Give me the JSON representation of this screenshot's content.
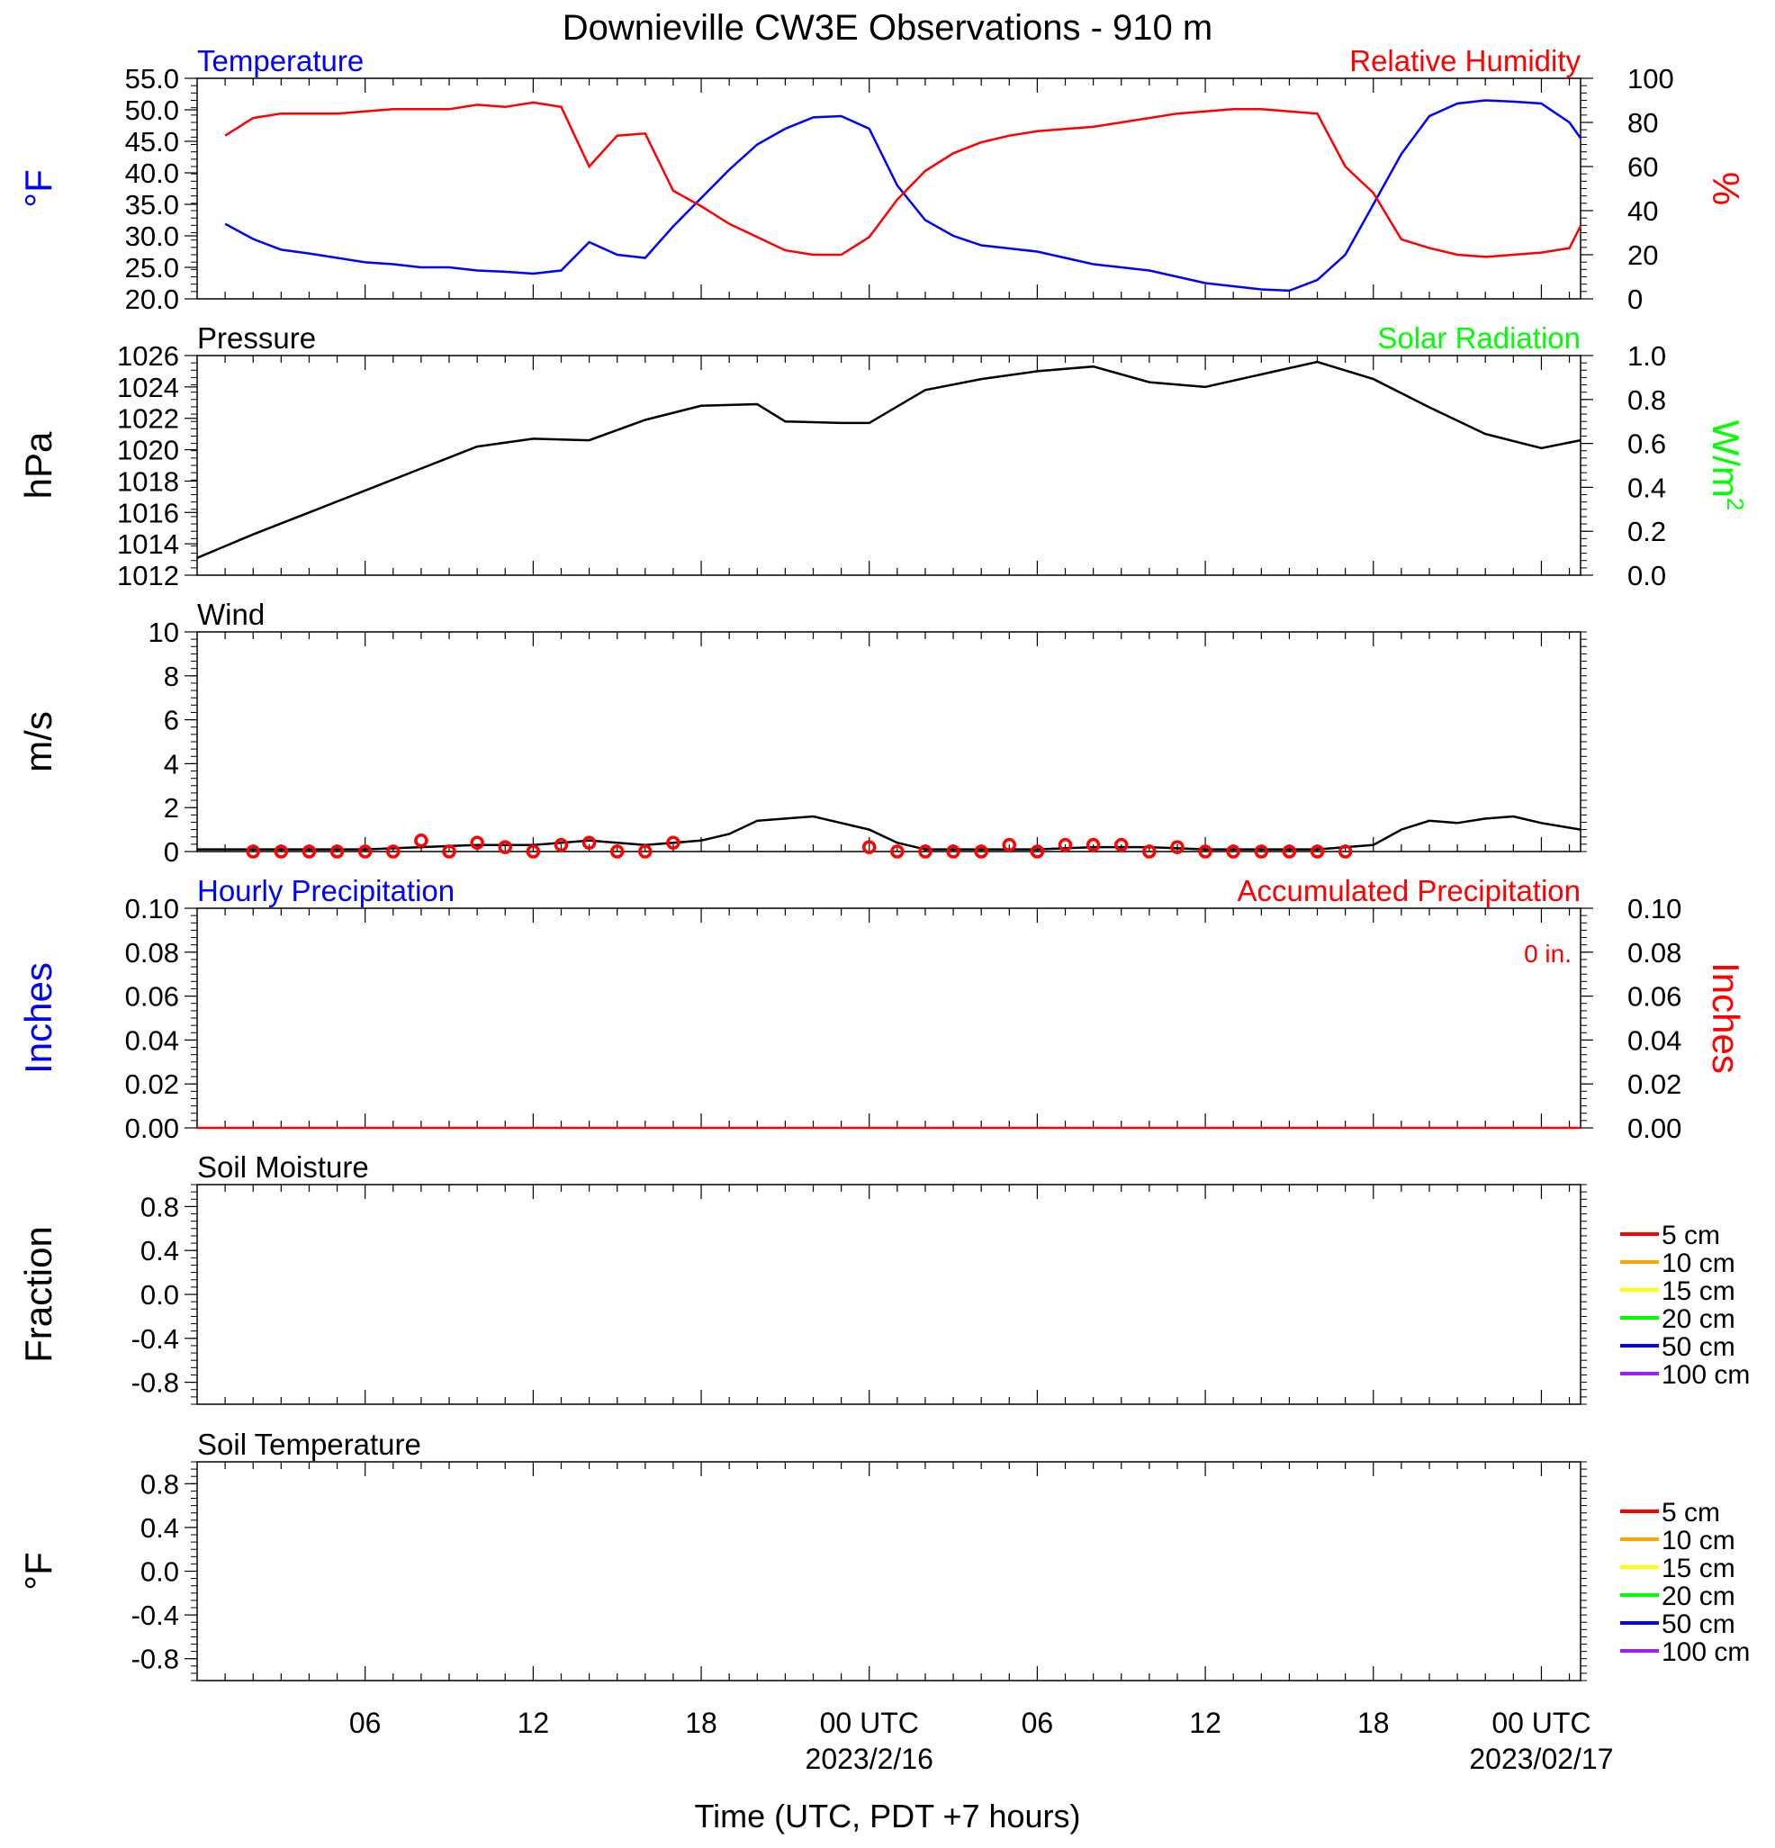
{
  "title": "Downieville CW3E Observations - 910 m",
  "xlabel": "Time (UTC, PDT +7 hours)",
  "x_ticks": [
    "06",
    "12",
    "18",
    "00 UTC",
    "06",
    "12",
    "18",
    "00 UTC"
  ],
  "x_dates": [
    "2023/2/16",
    "2023/02/17"
  ],
  "colors": {
    "red": "#ff0000",
    "blue": "#0000ff",
    "green": "#00ff00",
    "black": "#000000"
  },
  "chart_data": [
    {
      "type": "line",
      "panel": "temperature",
      "title_left": "Temperature",
      "title_right": "Relative Humidity",
      "ylabel_left": "°F",
      "ylabel_right": "%",
      "ylim_left": [
        20,
        55
      ],
      "ylim_right": [
        0,
        100
      ],
      "yticks_left": [
        "55.0",
        "50.0",
        "45.0",
        "40.0",
        "35.0",
        "30.0",
        "25.0",
        "20.0"
      ],
      "yticks_right": [
        "100",
        "80",
        "60",
        "40",
        "20",
        "0"
      ],
      "x_hours": [
        1,
        2,
        3,
        4,
        5,
        6,
        7,
        8,
        9,
        10,
        11,
        12,
        13,
        14,
        15,
        16,
        17,
        18,
        19,
        20,
        21,
        22,
        23,
        24,
        25,
        26,
        27,
        28,
        29,
        30,
        31,
        32,
        33,
        34,
        35,
        36,
        37,
        38,
        39,
        40,
        41,
        42,
        43,
        44,
        45,
        46,
        47,
        48,
        49,
        49.4
      ],
      "series": [
        {
          "name": "Temperature",
          "color": "#0000ff",
          "axis": "left",
          "values": [
            31.9,
            29.5,
            27.8,
            27.2,
            26.5,
            25.8,
            25.5,
            25.0,
            25.0,
            24.5,
            24.3,
            24.0,
            24.5,
            29.0,
            27.0,
            26.5,
            31.5,
            36.0,
            40.5,
            44.5,
            47.0,
            48.8,
            49.0,
            47.0,
            38.0,
            32.5,
            30.0,
            28.5,
            28.0,
            27.5,
            26.5,
            25.5,
            25.0,
            24.5,
            23.5,
            22.5,
            22.0,
            21.5,
            21.3,
            23.0,
            27.0,
            35.0,
            43.0,
            49.0,
            51.0,
            51.5,
            51.3,
            51.0,
            48.0,
            45.5
          ]
        },
        {
          "name": "Relative Humidity",
          "color": "#ff0000",
          "axis": "right",
          "values": [
            74,
            82,
            84,
            84,
            84,
            85,
            86,
            86,
            86,
            88,
            87,
            89,
            87,
            60,
            74,
            75,
            49,
            42,
            34,
            28,
            22,
            20,
            20,
            28,
            45,
            58,
            66,
            71,
            74,
            76,
            77,
            78,
            80,
            82,
            84,
            85,
            86,
            86,
            85,
            84,
            60,
            48,
            27,
            23,
            20,
            19,
            20,
            21,
            23,
            33
          ]
        }
      ]
    },
    {
      "type": "line",
      "panel": "pressure",
      "title_left": "Pressure",
      "title_right": "Solar Radiation",
      "ylabel_left": "hPa",
      "ylabel_right": "W/m",
      "ylabel_right_sup": "2",
      "ylim_left": [
        1012,
        1026
      ],
      "ylim_right": [
        0,
        1
      ],
      "yticks_left": [
        "1026",
        "1024",
        "1022",
        "1020",
        "1018",
        "1016",
        "1014",
        "1012"
      ],
      "yticks_right": [
        "1.0",
        "0.8",
        "0.6",
        "0.4",
        "0.2",
        "0.0"
      ],
      "x_hours": [
        0,
        2,
        4,
        6,
        8,
        10,
        12,
        14,
        16,
        18,
        20,
        21,
        23,
        24,
        26,
        28,
        30,
        32,
        34,
        36,
        38,
        40,
        42,
        44,
        46,
        48,
        49.4
      ],
      "series": [
        {
          "name": "Pressure",
          "color": "#000000",
          "axis": "left",
          "values": [
            1013.1,
            1014.6,
            1016.0,
            1017.4,
            1018.8,
            1020.2,
            1020.7,
            1020.6,
            1021.9,
            1022.8,
            1022.9,
            1021.8,
            1021.7,
            1021.7,
            1023.8,
            1024.5,
            1025.0,
            1025.3,
            1024.3,
            1024.0,
            1024.8,
            1025.6,
            1024.5,
            1022.7,
            1021.0,
            1020.1,
            1020.6
          ]
        }
      ]
    },
    {
      "type": "line",
      "panel": "wind",
      "title_left": "Wind",
      "ylabel_left": "m/s",
      "ylim_left": [
        0,
        10
      ],
      "yticks_left": [
        "10",
        "8",
        "6",
        "4",
        "2",
        "0"
      ],
      "x_hours": [
        0,
        2,
        4,
        6,
        8,
        10,
        12,
        14,
        16,
        18,
        19,
        20,
        21,
        22,
        23,
        24,
        25,
        26,
        28,
        30,
        32,
        34,
        36,
        38,
        40,
        42,
        43,
        44,
        45,
        46,
        47,
        48,
        49.4
      ],
      "series": [
        {
          "name": "Wind",
          "color": "#000000",
          "axis": "left",
          "values": [
            0.1,
            0.1,
            0.1,
            0.1,
            0.2,
            0.3,
            0.3,
            0.5,
            0.3,
            0.5,
            0.8,
            1.4,
            1.5,
            1.6,
            1.3,
            1.0,
            0.4,
            0.1,
            0.1,
            0.1,
            0.2,
            0.2,
            0.1,
            0.1,
            0.1,
            0.3,
            1.0,
            1.4,
            1.3,
            1.5,
            1.6,
            1.3,
            1.0
          ]
        }
      ],
      "markers_hours": [
        2,
        3,
        4,
        5,
        6,
        7,
        8,
        9,
        10,
        11,
        12,
        13,
        14,
        15,
        16,
        17,
        24,
        25,
        26,
        27,
        28,
        29,
        30,
        31,
        32,
        33,
        34,
        35,
        36,
        37,
        38,
        39,
        40,
        41
      ],
      "markers_values": [
        0,
        0,
        0,
        0,
        0,
        0,
        0.5,
        0,
        0.4,
        0.2,
        0,
        0.3,
        0.4,
        0,
        0,
        0.4,
        0.2,
        0,
        0,
        0,
        0,
        0.3,
        0,
        0.3,
        0.3,
        0.3,
        0,
        0.2,
        0,
        0,
        0,
        0,
        0,
        0
      ],
      "marker_color": "#ff0000"
    },
    {
      "type": "line",
      "panel": "precipitation",
      "title_left": "Hourly Precipitation",
      "title_right": "Accumulated Precipitation",
      "annotation": "0 in.",
      "ylabel_left": "Inches",
      "ylabel_right": "Inches",
      "ylim_left": [
        0,
        0.1
      ],
      "ylim_right": [
        0,
        0.1
      ],
      "yticks_left": [
        "0.10",
        "0.08",
        "0.06",
        "0.04",
        "0.02",
        "0.00"
      ],
      "yticks_right": [
        "0.10",
        "0.08",
        "0.06",
        "0.04",
        "0.02",
        "0.00"
      ],
      "x_hours": [
        0,
        49.4
      ],
      "series": [
        {
          "name": "Accumulated Precipitation",
          "color": "#ff0000",
          "axis": "right",
          "values": [
            0,
            0
          ]
        }
      ]
    },
    {
      "type": "line",
      "panel": "soil-moisture",
      "title_left": "Soil Moisture",
      "ylabel_left": "Fraction",
      "ylim_left": [
        -1,
        1
      ],
      "yticks_left": [
        "0.8",
        "0.4",
        "0.0",
        "-0.4",
        "-0.8"
      ],
      "legend": [
        {
          "name": "5 cm",
          "color": "#ff0000"
        },
        {
          "name": "10 cm",
          "color": "#ffa500"
        },
        {
          "name": "15 cm",
          "color": "#ffff00"
        },
        {
          "name": "20 cm",
          "color": "#00ff00"
        },
        {
          "name": "50 cm",
          "color": "#0000ff"
        },
        {
          "name": "100 cm",
          "color": "#a020f0"
        }
      ]
    },
    {
      "type": "line",
      "panel": "soil-temperature",
      "title_left": "Soil Temperature",
      "ylabel_left": "°F",
      "ylim_left": [
        -1,
        1
      ],
      "yticks_left": [
        "0.8",
        "0.4",
        "0.0",
        "-0.4",
        "-0.8"
      ],
      "legend": [
        {
          "name": "5 cm",
          "color": "#ff0000"
        },
        {
          "name": "10 cm",
          "color": "#ffa500"
        },
        {
          "name": "15 cm",
          "color": "#ffff00"
        },
        {
          "name": "20 cm",
          "color": "#00ff00"
        },
        {
          "name": "50 cm",
          "color": "#0000ff"
        },
        {
          "name": "100 cm",
          "color": "#a020f0"
        }
      ]
    }
  ]
}
